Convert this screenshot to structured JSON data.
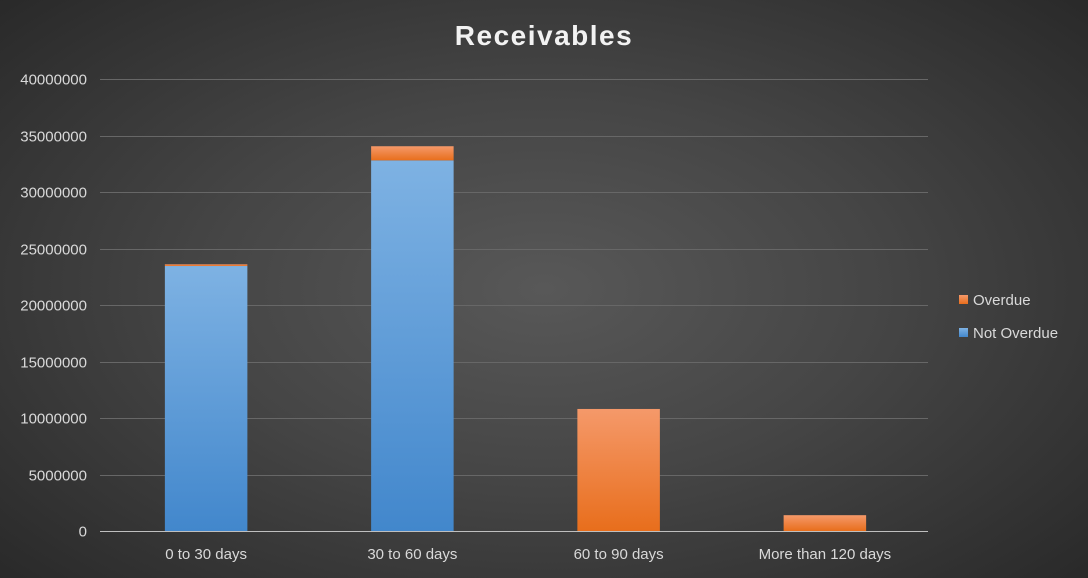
{
  "chart_data": {
    "type": "bar",
    "stacked": true,
    "title": "Receivables",
    "categories": [
      "0 to 30 days",
      "30 to 60 days",
      "60 to 90 days",
      "More than 120 days"
    ],
    "series": [
      {
        "name": "Not Overdue",
        "values": [
          23450000,
          32800000,
          0,
          0
        ],
        "color": "#5b9bd5",
        "gradient": [
          "#7eb2e3",
          "#4287cc"
        ]
      },
      {
        "name": "Overdue",
        "values": [
          150000,
          1250000,
          10800000,
          1400000
        ],
        "color": "#ed7d31",
        "gradient": [
          "#f5996a",
          "#e86e1c"
        ]
      }
    ],
    "ylim": [
      0,
      40000000
    ],
    "yticks": [
      0,
      5000000,
      10000000,
      15000000,
      20000000,
      25000000,
      30000000,
      35000000,
      40000000
    ],
    "grid": true,
    "legend": "right"
  }
}
